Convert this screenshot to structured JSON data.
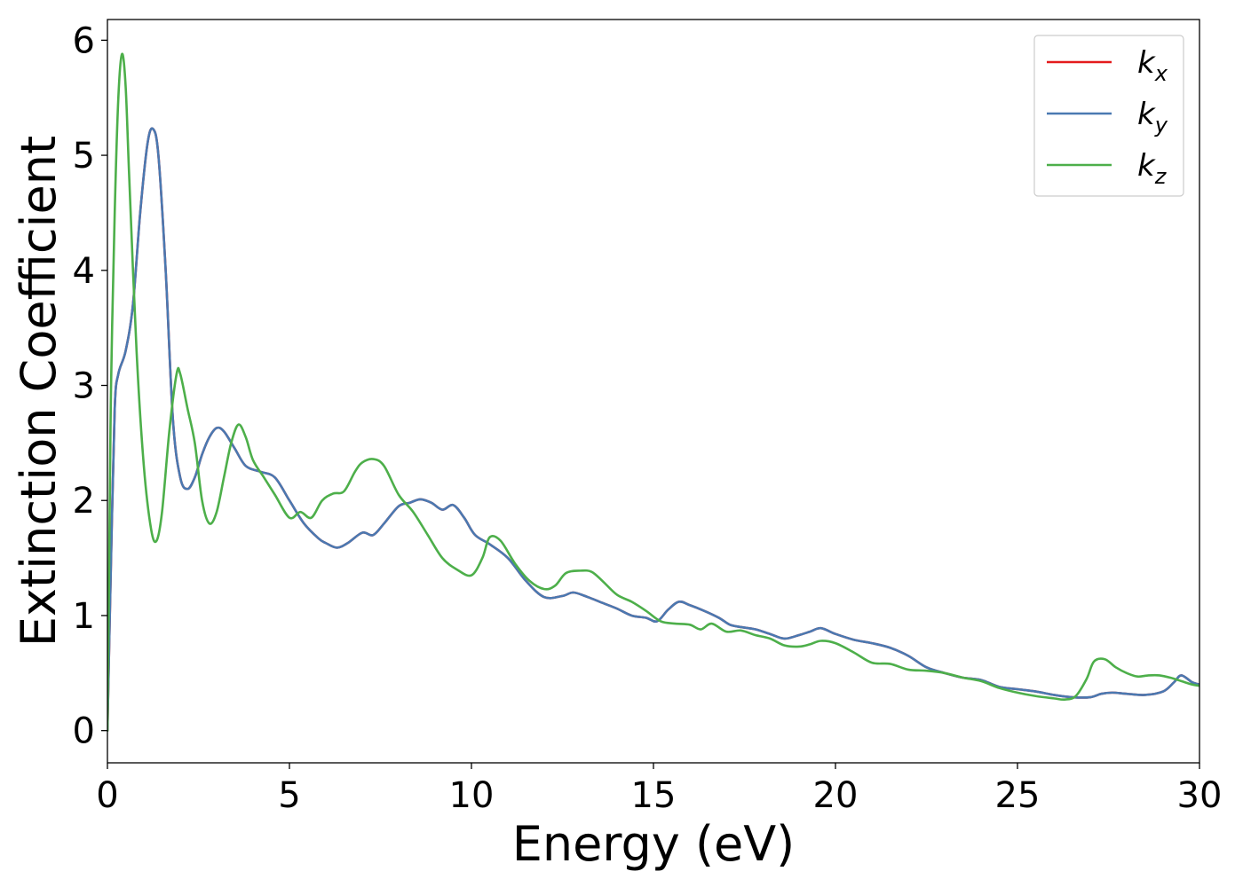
{
  "chart_data": {
    "type": "line",
    "title": "",
    "xlabel": "Energy (eV)",
    "ylabel": "Extinction Coefficient",
    "xlim": [
      0,
      30
    ],
    "ylim": [
      -0.28,
      6.18
    ],
    "xticks": [
      0,
      5,
      10,
      15,
      20,
      25,
      30
    ],
    "xtick_labels": [
      "0",
      "5",
      "10",
      "15",
      "20",
      "25",
      "30"
    ],
    "yticks": [
      0,
      1,
      2,
      3,
      4,
      5,
      6
    ],
    "ytick_labels": [
      "0",
      "1",
      "2",
      "3",
      "4",
      "5",
      "6"
    ],
    "grid": false,
    "legend_position": "top-right",
    "series": [
      {
        "name": "k",
        "sub": "x",
        "color": "#e41a1c",
        "x": [
          0,
          0.1,
          0.2,
          0.3,
          0.5,
          0.7,
          0.9,
          1.1,
          1.25,
          1.4,
          1.6,
          1.8,
          2.0,
          2.2,
          2.4,
          2.6,
          2.8,
          3.0,
          3.2,
          3.5,
          3.8,
          4.2,
          4.6,
          5.0,
          5.4,
          5.8,
          6.0,
          6.3,
          6.6,
          7.0,
          7.3,
          7.6,
          8.0,
          8.3,
          8.6,
          8.9,
          9.2,
          9.5,
          9.8,
          10.1,
          10.5,
          11.0,
          11.5,
          12.0,
          12.5,
          12.8,
          13.2,
          13.6,
          14.0,
          14.4,
          14.8,
          15.1,
          15.4,
          15.7,
          16.0,
          16.4,
          16.8,
          17.1,
          17.4,
          17.8,
          18.2,
          18.6,
          19.0,
          19.3,
          19.6,
          20.0,
          20.5,
          21.0,
          21.5,
          22.0,
          22.5,
          23.0,
          23.5,
          24.0,
          24.5,
          25.0,
          25.5,
          26.0,
          26.5,
          27.0,
          27.3,
          27.6,
          28.0,
          28.5,
          29.0,
          29.3,
          29.5,
          29.8,
          30.0
        ],
        "values": [
          0,
          1.5,
          2.8,
          3.1,
          3.3,
          3.7,
          4.5,
          5.1,
          5.23,
          5.0,
          4.0,
          2.7,
          2.2,
          2.1,
          2.2,
          2.4,
          2.55,
          2.63,
          2.6,
          2.45,
          2.3,
          2.25,
          2.2,
          2.0,
          1.8,
          1.67,
          1.63,
          1.59,
          1.63,
          1.72,
          1.7,
          1.8,
          1.95,
          1.98,
          2.01,
          1.98,
          1.92,
          1.96,
          1.85,
          1.7,
          1.62,
          1.5,
          1.3,
          1.16,
          1.17,
          1.2,
          1.16,
          1.11,
          1.06,
          1.0,
          0.98,
          0.95,
          1.05,
          1.12,
          1.09,
          1.04,
          0.98,
          0.92,
          0.9,
          0.88,
          0.84,
          0.8,
          0.83,
          0.86,
          0.89,
          0.84,
          0.79,
          0.76,
          0.72,
          0.65,
          0.55,
          0.5,
          0.46,
          0.44,
          0.38,
          0.36,
          0.34,
          0.31,
          0.29,
          0.29,
          0.32,
          0.33,
          0.32,
          0.31,
          0.34,
          0.42,
          0.48,
          0.42,
          0.4
        ]
      },
      {
        "name": "k",
        "sub": "y",
        "color": "#4a79b1",
        "x": [
          0,
          0.1,
          0.2,
          0.3,
          0.5,
          0.7,
          0.9,
          1.1,
          1.25,
          1.4,
          1.6,
          1.8,
          2.0,
          2.2,
          2.4,
          2.6,
          2.8,
          3.0,
          3.2,
          3.5,
          3.8,
          4.2,
          4.6,
          5.0,
          5.4,
          5.8,
          6.0,
          6.3,
          6.6,
          7.0,
          7.3,
          7.6,
          8.0,
          8.3,
          8.6,
          8.9,
          9.2,
          9.5,
          9.8,
          10.1,
          10.5,
          11.0,
          11.5,
          12.0,
          12.5,
          12.8,
          13.2,
          13.6,
          14.0,
          14.4,
          14.8,
          15.1,
          15.4,
          15.7,
          16.0,
          16.4,
          16.8,
          17.1,
          17.4,
          17.8,
          18.2,
          18.6,
          19.0,
          19.3,
          19.6,
          20.0,
          20.5,
          21.0,
          21.5,
          22.0,
          22.5,
          23.0,
          23.5,
          24.0,
          24.5,
          25.0,
          25.5,
          26.0,
          26.5,
          27.0,
          27.3,
          27.6,
          28.0,
          28.5,
          29.0,
          29.3,
          29.5,
          29.8,
          30.0
        ],
        "values": [
          0,
          1.5,
          2.8,
          3.1,
          3.3,
          3.7,
          4.5,
          5.1,
          5.23,
          5.0,
          4.0,
          2.7,
          2.2,
          2.1,
          2.2,
          2.4,
          2.55,
          2.63,
          2.6,
          2.45,
          2.3,
          2.25,
          2.2,
          2.0,
          1.8,
          1.67,
          1.63,
          1.59,
          1.63,
          1.72,
          1.7,
          1.8,
          1.95,
          1.98,
          2.01,
          1.98,
          1.92,
          1.96,
          1.85,
          1.7,
          1.62,
          1.5,
          1.3,
          1.16,
          1.17,
          1.2,
          1.16,
          1.11,
          1.06,
          1.0,
          0.98,
          0.95,
          1.05,
          1.12,
          1.09,
          1.04,
          0.98,
          0.92,
          0.9,
          0.88,
          0.84,
          0.8,
          0.83,
          0.86,
          0.89,
          0.84,
          0.79,
          0.76,
          0.72,
          0.65,
          0.55,
          0.5,
          0.46,
          0.44,
          0.38,
          0.36,
          0.34,
          0.31,
          0.29,
          0.29,
          0.32,
          0.33,
          0.32,
          0.31,
          0.34,
          0.42,
          0.48,
          0.42,
          0.4
        ]
      },
      {
        "name": "k",
        "sub": "z",
        "color": "#4daf4a",
        "x": [
          0,
          0.05,
          0.1,
          0.2,
          0.3,
          0.4,
          0.5,
          0.6,
          0.8,
          1.0,
          1.2,
          1.35,
          1.5,
          1.7,
          1.9,
          2.0,
          2.2,
          2.4,
          2.6,
          2.8,
          3.0,
          3.2,
          3.4,
          3.6,
          3.8,
          4.0,
          4.3,
          4.6,
          5.0,
          5.3,
          5.6,
          5.9,
          6.2,
          6.5,
          6.8,
          7.0,
          7.3,
          7.6,
          8.0,
          8.4,
          8.8,
          9.2,
          9.6,
          10.0,
          10.3,
          10.5,
          10.8,
          11.2,
          11.6,
          12.0,
          12.3,
          12.6,
          13.0,
          13.3,
          13.6,
          14.0,
          14.4,
          14.8,
          15.2,
          15.6,
          16.0,
          16.3,
          16.6,
          17.0,
          17.4,
          17.8,
          18.2,
          18.6,
          19.0,
          19.3,
          19.6,
          20.0,
          20.5,
          21.0,
          21.5,
          22.0,
          22.5,
          23.0,
          23.5,
          24.0,
          24.5,
          25.0,
          25.5,
          26.0,
          26.3,
          26.6,
          26.9,
          27.1,
          27.4,
          27.7,
          28.0,
          28.3,
          28.6,
          28.9,
          29.2,
          29.5,
          29.8,
          30.0
        ],
        "values": [
          0,
          1.5,
          3.0,
          4.5,
          5.5,
          5.88,
          5.6,
          4.8,
          3.3,
          2.3,
          1.75,
          1.65,
          1.9,
          2.6,
          3.1,
          3.1,
          2.8,
          2.5,
          2.0,
          1.8,
          1.9,
          2.2,
          2.5,
          2.66,
          2.55,
          2.35,
          2.2,
          2.05,
          1.85,
          1.9,
          1.85,
          2.0,
          2.06,
          2.08,
          2.25,
          2.33,
          2.36,
          2.3,
          2.05,
          1.9,
          1.7,
          1.5,
          1.4,
          1.35,
          1.5,
          1.68,
          1.65,
          1.45,
          1.3,
          1.23,
          1.26,
          1.37,
          1.39,
          1.38,
          1.3,
          1.18,
          1.12,
          1.04,
          0.95,
          0.93,
          0.92,
          0.88,
          0.93,
          0.86,
          0.87,
          0.83,
          0.8,
          0.74,
          0.73,
          0.75,
          0.78,
          0.76,
          0.68,
          0.59,
          0.58,
          0.53,
          0.52,
          0.5,
          0.46,
          0.43,
          0.37,
          0.33,
          0.3,
          0.28,
          0.27,
          0.3,
          0.45,
          0.6,
          0.62,
          0.55,
          0.5,
          0.47,
          0.48,
          0.48,
          0.46,
          0.43,
          0.4,
          0.39
        ]
      }
    ]
  }
}
